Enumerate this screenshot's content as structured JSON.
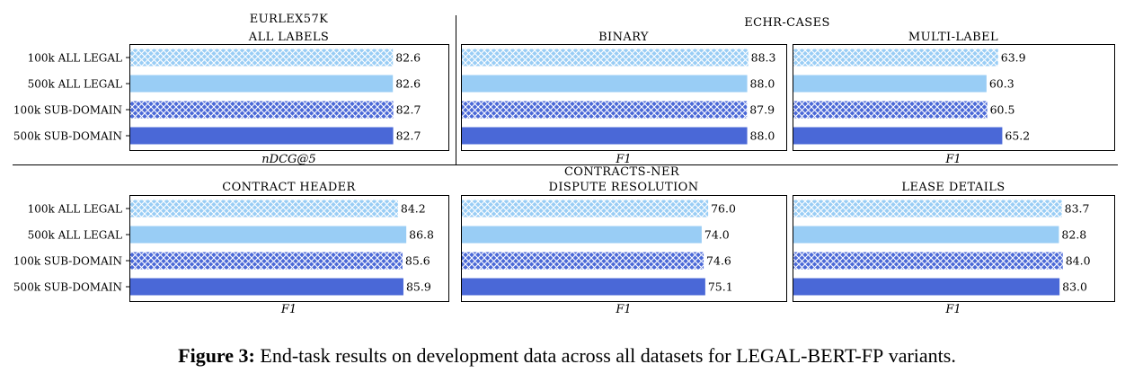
{
  "colors": {
    "light": "#99cdf5",
    "dark": "#4a68d7",
    "frame": "#000000"
  },
  "legend_variants": [
    "100k ALL LEGAL",
    "500k ALL LEGAL",
    "100k SUB-DOMAIN",
    "500k SUB-DOMAIN"
  ],
  "row_titles": [
    "ECHR-CASES",
    "CONTRACTS-NER"
  ],
  "caption": {
    "lead": "Figure 3:",
    "text": "End-task results on development data across all datasets for",
    "model": "LEGAL-BERT-FP",
    "tail": "variants."
  },
  "chart_data": [
    {
      "type": "bar",
      "orientation": "horizontal",
      "title": "EURLEX57K",
      "subtitle": "ALL LABELS",
      "xlabel": "nDCG@5",
      "categories": [
        "100k ALL LEGAL",
        "500k ALL LEGAL",
        "100k SUB-DOMAIN",
        "500k SUB-DOMAIN"
      ],
      "values": [
        82.6,
        82.6,
        82.7,
        82.7
      ],
      "labels": [
        "82.6",
        "82.6",
        "82.7",
        "82.7"
      ],
      "xlim": [
        0,
        100
      ]
    },
    {
      "type": "bar",
      "orientation": "horizontal",
      "title": "ECHR-CASES",
      "subtitle": "BINARY",
      "xlabel": "F1",
      "categories": [
        "100k ALL LEGAL",
        "500k ALL LEGAL",
        "100k SUB-DOMAIN",
        "500k SUB-DOMAIN"
      ],
      "values": [
        88.3,
        88.0,
        87.9,
        88.0
      ],
      "labels": [
        "88.3",
        "88.0",
        "87.9",
        "88.0"
      ],
      "xlim": [
        0,
        100
      ]
    },
    {
      "type": "bar",
      "orientation": "horizontal",
      "title": "ECHR-CASES",
      "subtitle": "MULTI-LABEL",
      "xlabel": "F1",
      "categories": [
        "100k ALL LEGAL",
        "500k ALL LEGAL",
        "100k SUB-DOMAIN",
        "500k SUB-DOMAIN"
      ],
      "values": [
        63.9,
        60.3,
        60.5,
        65.2
      ],
      "labels": [
        "63.9",
        "60.3",
        "60.5",
        "65.2"
      ],
      "xlim": [
        0,
        100
      ]
    },
    {
      "type": "bar",
      "orientation": "horizontal",
      "title": "CONTRACTS-NER",
      "subtitle": "CONTRACT HEADER",
      "xlabel": "F1",
      "categories": [
        "100k ALL LEGAL",
        "500k ALL LEGAL",
        "100k SUB-DOMAIN",
        "500k SUB-DOMAIN"
      ],
      "values": [
        84.2,
        86.8,
        85.6,
        85.9
      ],
      "labels": [
        "84.2",
        "86.8",
        "85.6",
        "85.9"
      ],
      "xlim": [
        0,
        100
      ]
    },
    {
      "type": "bar",
      "orientation": "horizontal",
      "title": "CONTRACTS-NER",
      "subtitle": "DISPUTE RESOLUTION",
      "xlabel": "F1",
      "categories": [
        "100k ALL LEGAL",
        "500k ALL LEGAL",
        "100k SUB-DOMAIN",
        "500k SUB-DOMAIN"
      ],
      "values": [
        76.0,
        74.0,
        74.6,
        75.1
      ],
      "labels": [
        "76.0",
        "74.0",
        "74.6",
        "75.1"
      ],
      "xlim": [
        0,
        100
      ]
    },
    {
      "type": "bar",
      "orientation": "horizontal",
      "title": "CONTRACTS-NER",
      "subtitle": "LEASE DETAILS",
      "xlabel": "F1",
      "categories": [
        "100k ALL LEGAL",
        "500k ALL LEGAL",
        "100k SUB-DOMAIN",
        "500k SUB-DOMAIN"
      ],
      "values": [
        83.7,
        82.8,
        84.0,
        83.0
      ],
      "labels": [
        "83.7",
        "82.8",
        "84.0",
        "83.0"
      ],
      "xlim": [
        0,
        100
      ]
    }
  ]
}
